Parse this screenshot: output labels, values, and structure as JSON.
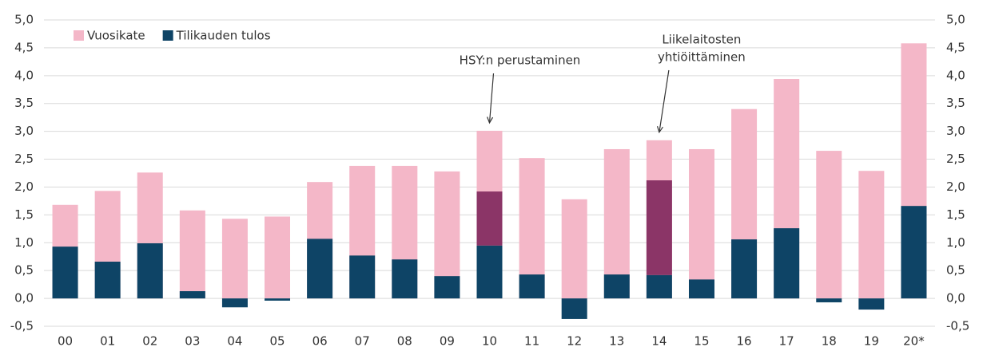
{
  "chart_data": {
    "type": "bar",
    "categories": [
      "00",
      "01",
      "02",
      "03",
      "04",
      "05",
      "06",
      "07",
      "08",
      "09",
      "10",
      "11",
      "12",
      "13",
      "14",
      "15",
      "16",
      "17",
      "18",
      "19",
      "20*"
    ],
    "series": [
      {
        "name": "Vuosikate",
        "color": "#f4b7c8",
        "values": [
          1.68,
          1.93,
          2.26,
          1.58,
          1.43,
          1.47,
          2.09,
          2.38,
          2.38,
          2.28,
          3.01,
          2.52,
          1.78,
          2.68,
          2.84,
          2.68,
          3.4,
          3.94,
          2.65,
          2.29,
          4.58
        ]
      },
      {
        "name": "Tilikauden tulos",
        "color": "#0e4466",
        "values": [
          0.93,
          0.66,
          0.99,
          0.13,
          -0.16,
          -0.04,
          1.07,
          0.77,
          0.7,
          0.4,
          0.95,
          0.43,
          -0.37,
          0.43,
          0.42,
          0.34,
          1.06,
          1.26,
          -0.07,
          -0.2,
          1.66
        ]
      },
      {
        "color": "#8b3567",
        "stacked": true,
        "values": [
          null,
          null,
          null,
          null,
          null,
          null,
          null,
          null,
          null,
          null,
          0.97,
          null,
          null,
          null,
          1.7,
          null,
          null,
          null,
          null,
          null,
          null
        ]
      }
    ],
    "annotations": [
      {
        "lines": [
          "HSY:n perustaminen"
        ],
        "category": "10"
      },
      {
        "lines": [
          "Liikelaitosten",
          "yhtiöittäminen"
        ],
        "category": "14"
      }
    ],
    "ylim": [
      -0.5,
      5.0
    ],
    "yticks": [
      {
        "value": -0.5,
        "label": "-0,5"
      },
      {
        "value": 0,
        "label": "0,0"
      },
      {
        "value": 0.5,
        "label": "0,5"
      },
      {
        "value": 1,
        "label": "1,0"
      },
      {
        "value": 1.5,
        "label": "1,5"
      },
      {
        "value": 2,
        "label": "2,0"
      },
      {
        "value": 2.5,
        "label": "2,5"
      },
      {
        "value": 3,
        "label": "3,0"
      },
      {
        "value": 3.5,
        "label": "3,5"
      },
      {
        "value": 4,
        "label": "4,0"
      },
      {
        "value": 4.5,
        "label": "4,5"
      },
      {
        "value": 5,
        "label": "5,0"
      }
    ],
    "y2lim": [
      -0.5,
      5.0
    ],
    "y2ticks": [
      {
        "value": -0.5,
        "label": "-0,5"
      },
      {
        "value": 0,
        "label": "0,0"
      },
      {
        "value": 0.5,
        "label": "0,5"
      },
      {
        "value": 1,
        "label": "1,0"
      },
      {
        "value": 1.5,
        "label": "1,5"
      },
      {
        "value": 2,
        "label": "2,0"
      },
      {
        "value": 2.5,
        "label": "2,5"
      },
      {
        "value": 3,
        "label": "3,0"
      },
      {
        "value": 3.5,
        "label": "3,5"
      },
      {
        "value": 4,
        "label": "4,0"
      },
      {
        "value": 4.5,
        "label": "4,5"
      },
      {
        "value": 5,
        "label": "5,0"
      }
    ],
    "grid": true,
    "legend": "top-left"
  }
}
